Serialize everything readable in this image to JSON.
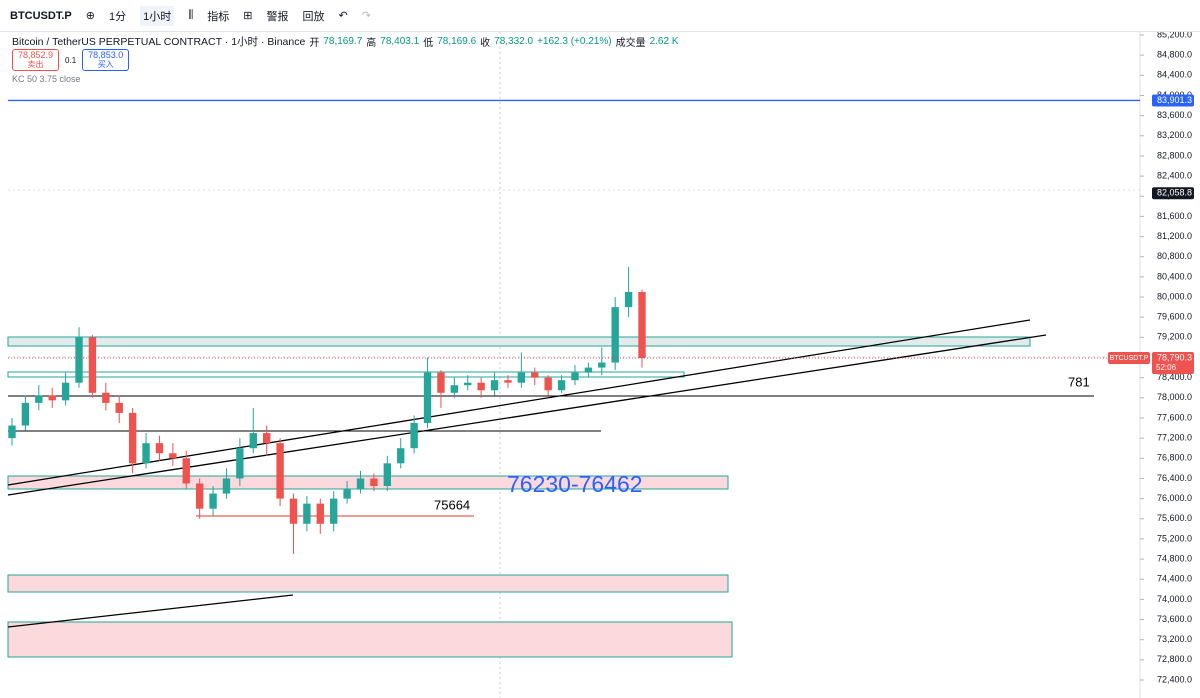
{
  "toolbar": {
    "symbol": "BTCUSDT.P",
    "interval_1": "1分",
    "interval_2": "1小时",
    "indicators": "指标",
    "alerts": "警报",
    "replay": "回放"
  },
  "legend": {
    "title": "Bitcoin / TetherUS PERPETUAL CONTRACT · 1小时 · Binance",
    "open_label": "开",
    "open": "78,169.7",
    "high_label": "高",
    "high": "78,403.1",
    "low_label": "低",
    "low": "78,169.6",
    "close_label": "收",
    "close": "78,332.0",
    "change": "+162.3 (+0.21%)",
    "volume_label": "成交量",
    "volume": "2.62 K",
    "sell_price": "78,852.9",
    "sell": "卖出",
    "spread": "0.1",
    "buy_price": "78,853.0",
    "buy": "买入",
    "indicator": "KC 50 3.75 close"
  },
  "chart_data": {
    "type": "candlestick",
    "up_color": "#26a69a",
    "down_color": "#ef5350",
    "ylim": [
      72043,
      85339
    ],
    "yticks": [
      {
        "value": 85200,
        "label": "85,200.0"
      },
      {
        "value": 84800,
        "label": "84,800.0"
      },
      {
        "value": 84400,
        "label": "84,400.0"
      },
      {
        "value": 84000,
        "label": "84,000.0"
      },
      {
        "value": 83600,
        "label": "83,600.0"
      },
      {
        "value": 83200,
        "label": "83,200.0"
      },
      {
        "value": 82800,
        "label": "82,800.0"
      },
      {
        "value": 82400,
        "label": "82,400.0"
      },
      {
        "value": 82000,
        "label": "82,000.0"
      },
      {
        "value": 81600,
        "label": "81,600.0"
      },
      {
        "value": 81200,
        "label": "81,200.0"
      },
      {
        "value": 80800,
        "label": "80,800.0"
      },
      {
        "value": 80400,
        "label": "80,400.0"
      },
      {
        "value": 80000,
        "label": "80,000.0"
      },
      {
        "value": 79600,
        "label": "79,600.0"
      },
      {
        "value": 79200,
        "label": "79,200.0"
      },
      {
        "value": 78800,
        "label": "78,800.0"
      },
      {
        "value": 78400,
        "label": "78,400.0"
      },
      {
        "value": 78000,
        "label": "78,000.0"
      },
      {
        "value": 77600,
        "label": "77,600.0"
      },
      {
        "value": 77200,
        "label": "77,200.0"
      },
      {
        "value": 76800,
        "label": "76,800.0"
      },
      {
        "value": 76400,
        "label": "76,400.0"
      },
      {
        "value": 76000,
        "label": "76,000.0"
      },
      {
        "value": 75600,
        "label": "75,600.0"
      },
      {
        "value": 75200,
        "label": "75,200.0"
      },
      {
        "value": 74800,
        "label": "74,800.0"
      },
      {
        "value": 74400,
        "label": "74,400.0"
      },
      {
        "value": 74000,
        "label": "74,000.0"
      },
      {
        "value": 73600,
        "label": "73,600.0"
      },
      {
        "value": 73200,
        "label": "73,200.0"
      },
      {
        "value": 72800,
        "label": "72,800.0"
      },
      {
        "value": 72400,
        "label": "72,400.0"
      }
    ],
    "open": [
      77200,
      77450,
      77900,
      78050,
      77950,
      78300,
      79200,
      78100,
      77900,
      77700,
      76700,
      77100,
      76900,
      76800,
      76300,
      75800,
      76100,
      76400,
      77000,
      77300,
      77100,
      76000,
      75500,
      75900,
      75500,
      76000,
      76200,
      76400,
      76250,
      76700,
      77000,
      77500,
      78500,
      78100,
      78250,
      78300,
      78150,
      78350,
      78300,
      78500,
      78400,
      78150,
      78350,
      78500,
      78600,
      78700,
      79800,
      80100
    ],
    "high": [
      77600,
      78050,
      78250,
      78200,
      78500,
      79400,
      79250,
      78300,
      78050,
      77800,
      77300,
      77250,
      77100,
      76950,
      76400,
      76250,
      76600,
      77200,
      77800,
      77450,
      77200,
      76100,
      76050,
      76000,
      76150,
      76350,
      76550,
      76500,
      76850,
      77200,
      77650,
      78800,
      78550,
      78400,
      78450,
      78400,
      78500,
      78450,
      78900,
      78600,
      78450,
      78450,
      78650,
      78700,
      79000,
      80000,
      80600,
      80150
    ],
    "low": [
      77050,
      77350,
      77750,
      77800,
      77850,
      78200,
      78000,
      77750,
      77500,
      76500,
      76600,
      76750,
      76650,
      76200,
      75600,
      75650,
      76000,
      76250,
      76900,
      76850,
      75850,
      74900,
      75350,
      75300,
      75350,
      75900,
      76100,
      76150,
      76150,
      76600,
      76900,
      77400,
      77800,
      78000,
      78150,
      78000,
      78050,
      78200,
      78200,
      78250,
      78050,
      78100,
      78250,
      78400,
      78450,
      78550,
      79600,
      78600
    ],
    "close": [
      77450,
      77900,
      78050,
      77950,
      78300,
      79200,
      78100,
      77900,
      77700,
      76700,
      77100,
      76900,
      76800,
      76300,
      75800,
      76100,
      76400,
      77000,
      77300,
      77100,
      76000,
      75500,
      75900,
      75500,
      76000,
      76200,
      76400,
      76250,
      76700,
      77000,
      77500,
      78500,
      78100,
      78250,
      78300,
      78150,
      78350,
      78300,
      78500,
      78400,
      78150,
      78350,
      78500,
      78600,
      78700,
      79800,
      80100,
      78790
    ]
  },
  "price_labels": [
    {
      "value": 83901.3,
      "label": "83,901.3",
      "color": "#2962ff"
    },
    {
      "value": 82058.8,
      "label": "82,058.8",
      "color": "#131722"
    }
  ],
  "last_price": {
    "symbol": "BTCUSDT.P",
    "value": 78790.3,
    "label": "78,790.3",
    "countdown": "52:06",
    "color": "#ef5350"
  },
  "annotations": {
    "level_right": "781",
    "level_low": "75664",
    "zone": "76230-76462"
  }
}
